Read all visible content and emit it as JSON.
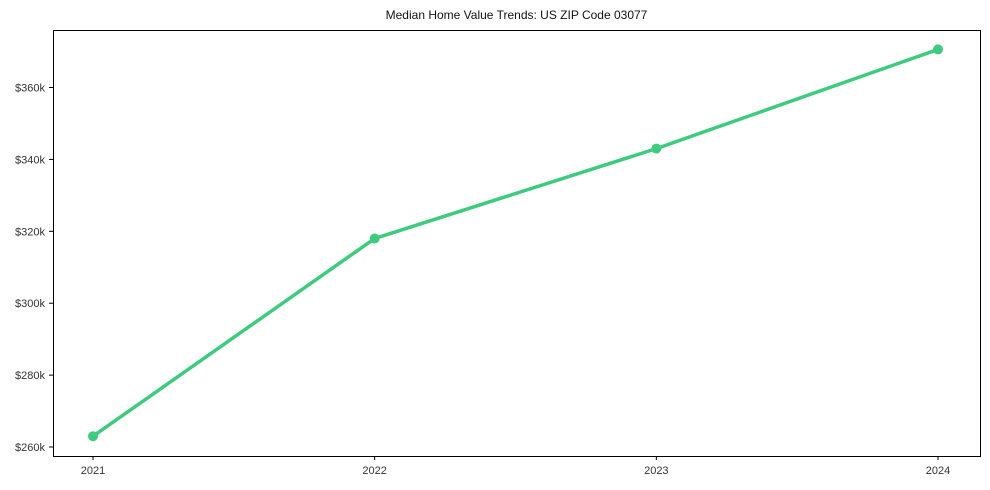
{
  "chart_data": {
    "type": "line",
    "title": "Median Home Value Trends: US ZIP Code 03077",
    "categories": [
      "2021",
      "2022",
      "2023",
      "2024"
    ],
    "values": [
      263000,
      318000,
      343000,
      370600
    ],
    "xlabel": "",
    "ylabel": "",
    "y_ticks": [
      {
        "value": 260000,
        "label": "$260k"
      },
      {
        "value": 280000,
        "label": "$280k"
      },
      {
        "value": 300000,
        "label": "$300k"
      },
      {
        "value": 320000,
        "label": "$320k"
      },
      {
        "value": 340000,
        "label": "$340k"
      },
      {
        "value": 360000,
        "label": "$360k"
      }
    ],
    "ylim": [
      257500,
      376000
    ],
    "grid": false,
    "legend": "none",
    "marker": "circle",
    "colors": {
      "line": "#3ecb7d",
      "spine": "#000000",
      "tick_label": "#333333",
      "title": "#111111",
      "background": "#ffffff"
    }
  }
}
